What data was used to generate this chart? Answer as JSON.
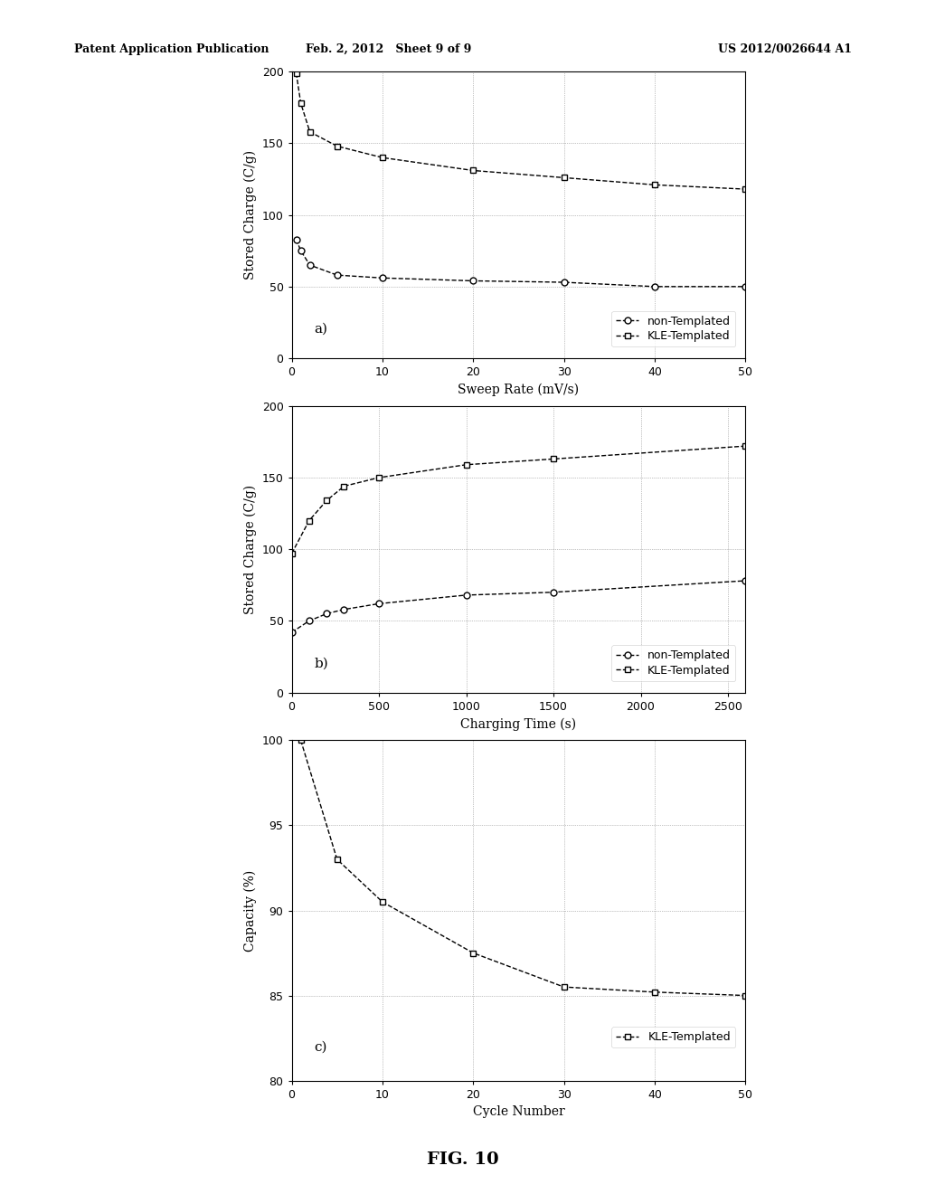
{
  "fig_width": 10.24,
  "fig_height": 13.2,
  "bg_color": "#ffffff",
  "header_left": "Patent Application Publication",
  "header_mid": "Feb. 2, 2012   Sheet 9 of 9",
  "header_right": "US 2012/0026644 A1",
  "footer_text": "FIG. 10",
  "plot_a": {
    "label": "a)",
    "non_templated_x": [
      0.5,
      1,
      2,
      5,
      10,
      20,
      30,
      40,
      50
    ],
    "non_templated_y": [
      83,
      75,
      65,
      58,
      56,
      54,
      53,
      50,
      50
    ],
    "kle_templated_x": [
      0.5,
      1,
      2,
      5,
      10,
      20,
      30,
      40,
      50
    ],
    "kle_templated_y": [
      199,
      178,
      158,
      148,
      140,
      131,
      126,
      121,
      118
    ],
    "xlabel": "Sweep Rate (mV/s)",
    "ylabel": "Stored Charge (C/g)",
    "xlim": [
      0,
      50
    ],
    "ylim": [
      0,
      200
    ],
    "xticks": [
      0,
      10,
      20,
      30,
      40,
      50
    ],
    "yticks": [
      0,
      50,
      100,
      150,
      200
    ]
  },
  "plot_b": {
    "label": "b)",
    "non_templated_x": [
      0,
      100,
      200,
      300,
      500,
      1000,
      1500,
      2600
    ],
    "non_templated_y": [
      42,
      50,
      55,
      58,
      62,
      68,
      70,
      78
    ],
    "kle_templated_x": [
      0,
      100,
      200,
      300,
      500,
      1000,
      1500,
      2600
    ],
    "kle_templated_y": [
      97,
      120,
      134,
      144,
      150,
      159,
      163,
      172
    ],
    "xlabel": "Charging Time (s)",
    "ylabel": "Stored Charge (C/g)",
    "xlim": [
      0,
      2600
    ],
    "ylim": [
      0,
      200
    ],
    "xticks": [
      0,
      500,
      1000,
      1500,
      2000,
      2500
    ],
    "yticks": [
      0,
      50,
      100,
      150,
      200
    ]
  },
  "plot_c": {
    "label": "c)",
    "kle_x": [
      1,
      5,
      10,
      20,
      30,
      40,
      50
    ],
    "kle_y": [
      100,
      93,
      90.5,
      87.5,
      85.5,
      85.2,
      85.0
    ],
    "xlabel": "Cycle Number",
    "ylabel": "Capacity (%)",
    "xlim": [
      0,
      50
    ],
    "ylim": [
      80,
      100
    ],
    "xticks": [
      0,
      10,
      20,
      30,
      40,
      50
    ],
    "yticks": [
      80,
      85,
      90,
      95,
      100
    ]
  },
  "line_color": "#000000",
  "marker_circle": "o",
  "marker_square": "s",
  "marker_size": 5,
  "line_style_dashed": "--",
  "legend_fontsize": 9,
  "tick_fontsize": 9,
  "axes_label_fontsize": 10
}
